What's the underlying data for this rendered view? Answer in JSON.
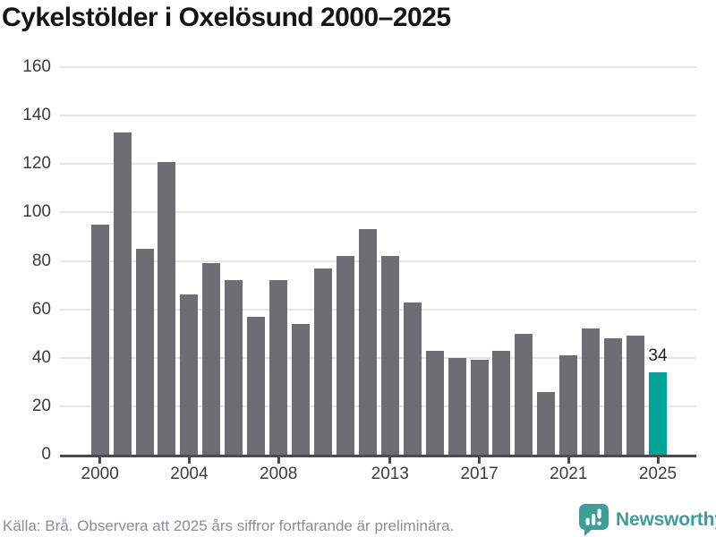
{
  "title": "Cykelstölder i Oxelösund 2000–2025",
  "chart_data": {
    "type": "bar",
    "title": "Cykelstölder i Oxelösund 2000–2025",
    "categories": [
      2000,
      2001,
      2002,
      2003,
      2004,
      2005,
      2006,
      2007,
      2008,
      2009,
      2010,
      2011,
      2012,
      2013,
      2014,
      2015,
      2016,
      2017,
      2018,
      2019,
      2020,
      2021,
      2022,
      2023,
      2024,
      2025
    ],
    "values": [
      95,
      133,
      85,
      121,
      66,
      79,
      72,
      57,
      72,
      54,
      77,
      82,
      93,
      82,
      63,
      43,
      40,
      39,
      43,
      50,
      26,
      41,
      52,
      48,
      49,
      34
    ],
    "ylim": [
      0,
      160
    ],
    "y_tick_labels": [
      "0",
      "20",
      "40",
      "60",
      "80",
      "100",
      "120",
      "140",
      "160"
    ],
    "x_tick_labels": [
      "2000",
      "2004",
      "2008",
      "2013",
      "2017",
      "2021",
      "2025"
    ],
    "grid": true,
    "legend_position": "none",
    "bar_color": "#6e6d72",
    "highlight_year": 2025,
    "highlight_color": "#00a49b",
    "annotation": {
      "text": "34",
      "year": 2025
    }
  },
  "footer": {
    "source_note": "Källa: Brå. Observera att 2025 års siffror fortfarande är preliminära.",
    "brand": "Newsworthy",
    "brand_color": "#3d9e97"
  }
}
